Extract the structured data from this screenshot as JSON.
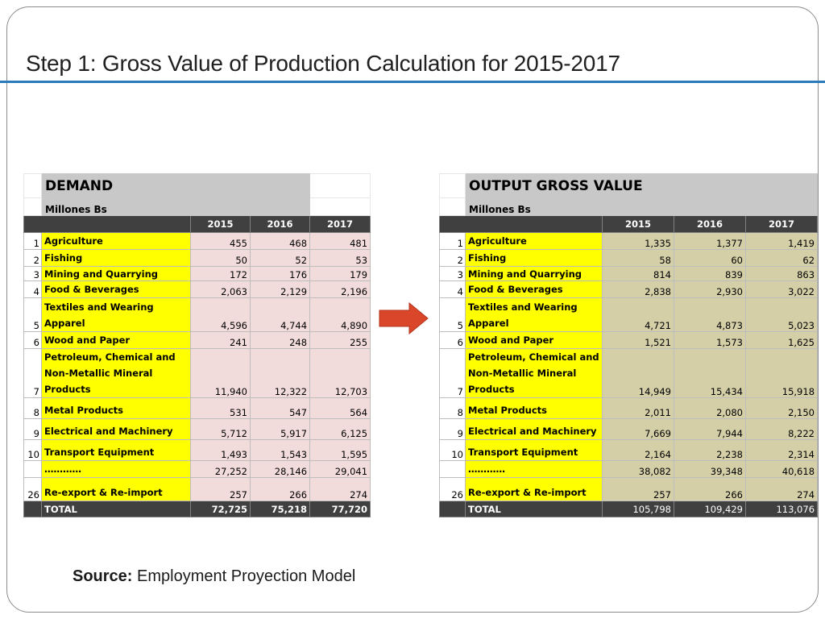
{
  "slide": {
    "title": "Step 1: Gross Value of Production Calculation for 2015-2017",
    "source_label": "Source:",
    "source_text": "Employment Proyection Model",
    "colors": {
      "title_rule": "#2a7bbd",
      "sector_fill": "#ffff00",
      "demand_fill": "#f2dcdb",
      "output_fill": "#d5cfa8",
      "header_dark": "#404040",
      "arrow": "#d9462a"
    }
  },
  "demand": {
    "title": "DEMAND",
    "unit": "Millones Bs",
    "years": [
      "2015",
      "2016",
      "2017"
    ],
    "rows": [
      {
        "idx": "1",
        "label": "Agriculture",
        "v": [
          "455",
          "468",
          "481"
        ]
      },
      {
        "idx": "2",
        "label": "Fishing",
        "v": [
          "50",
          "52",
          "53"
        ]
      },
      {
        "idx": "3",
        "label": "Mining and Quarrying",
        "v": [
          "172",
          "176",
          "179"
        ]
      },
      {
        "idx": "4",
        "label": "Food & Beverages",
        "v": [
          "2,063",
          "2,129",
          "2,196"
        ]
      },
      {
        "idx": "5",
        "label": "Textiles and Wearing Apparel",
        "v": [
          "4,596",
          "4,744",
          "4,890"
        ]
      },
      {
        "idx": "6",
        "label": "Wood and Paper",
        "v": [
          "241",
          "248",
          "255"
        ]
      },
      {
        "idx": "7",
        "label": "Petroleum, Chemical and Non-Metallic Mineral Products",
        "v": [
          "11,940",
          "12,322",
          "12,703"
        ]
      },
      {
        "idx": "8",
        "label": "Metal Products",
        "v": [
          "531",
          "547",
          "564"
        ]
      },
      {
        "idx": "9",
        "label": "Electrical and Machinery",
        "v": [
          "5,712",
          "5,917",
          "6,125"
        ]
      },
      {
        "idx": "10",
        "label": "Transport Equipment",
        "v": [
          "1,493",
          "1,543",
          "1,595"
        ]
      },
      {
        "idx": "",
        "label": "…………",
        "v": [
          "27,252",
          "28,146",
          "29,041"
        ]
      },
      {
        "idx": "26",
        "label": "Re-export & Re-import",
        "v": [
          "257",
          "266",
          "274"
        ]
      }
    ],
    "total": {
      "label": "TOTAL",
      "v": [
        "72,725",
        "75,218",
        "77,720"
      ]
    }
  },
  "output": {
    "title": "OUTPUT GROSS VALUE",
    "unit": "Millones Bs",
    "years": [
      "2015",
      "2016",
      "2017"
    ],
    "rows": [
      {
        "idx": "1",
        "label": "Agriculture",
        "v": [
          "1,335",
          "1,377",
          "1,419"
        ]
      },
      {
        "idx": "2",
        "label": "Fishing",
        "v": [
          "58",
          "60",
          "62"
        ]
      },
      {
        "idx": "3",
        "label": "Mining and Quarrying",
        "v": [
          "814",
          "839",
          "863"
        ]
      },
      {
        "idx": "4",
        "label": "Food & Beverages",
        "v": [
          "2,838",
          "2,930",
          "3,022"
        ]
      },
      {
        "idx": "5",
        "label": "Textiles and Wearing Apparel",
        "v": [
          "4,721",
          "4,873",
          "5,023"
        ]
      },
      {
        "idx": "6",
        "label": "Wood and Paper",
        "v": [
          "1,521",
          "1,573",
          "1,625"
        ]
      },
      {
        "idx": "7",
        "label": "Petroleum, Chemical and Non-Metallic Mineral Products",
        "v": [
          "14,949",
          "15,434",
          "15,918"
        ]
      },
      {
        "idx": "8",
        "label": "Metal Products",
        "v": [
          "2,011",
          "2,080",
          "2,150"
        ]
      },
      {
        "idx": "9",
        "label": "Electrical and Machinery",
        "v": [
          "7,669",
          "7,944",
          "8,222"
        ]
      },
      {
        "idx": "10",
        "label": "Transport Equipment",
        "v": [
          "2,164",
          "2,238",
          "2,314"
        ]
      },
      {
        "idx": "",
        "label": "…………",
        "v": [
          "38,082",
          "39,348",
          "40,618"
        ]
      },
      {
        "idx": "26",
        "label": "Re-export & Re-import",
        "v": [
          "257",
          "266",
          "274"
        ]
      }
    ],
    "total": {
      "label": "TOTAL",
      "v": [
        "105,798",
        "109,429",
        "113,076"
      ]
    }
  }
}
